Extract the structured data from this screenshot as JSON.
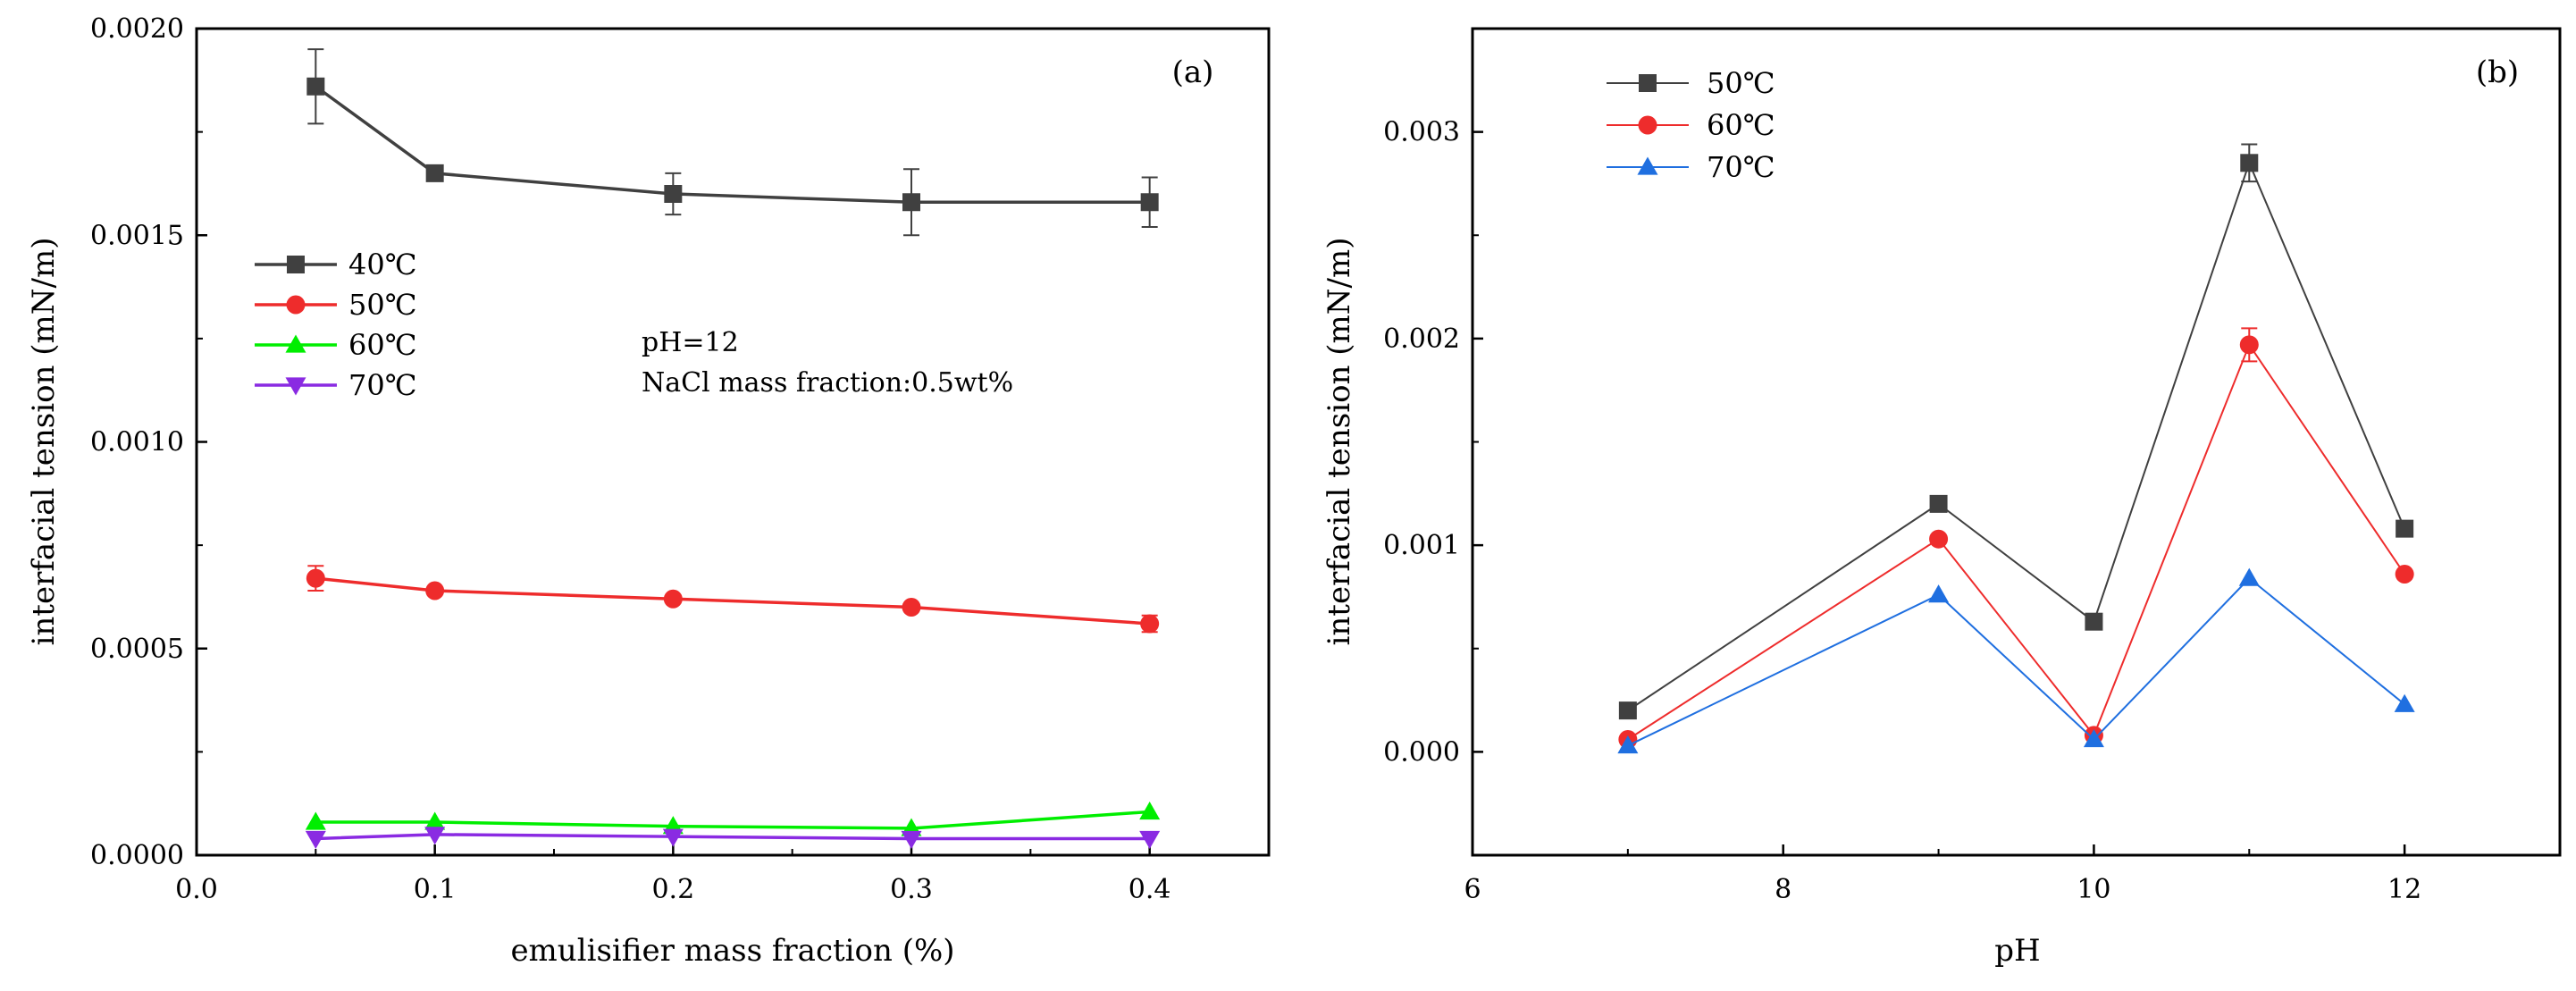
{
  "chart_data": [
    {
      "type": "line",
      "panel_label": "(a)",
      "xlabel": "emulisifier mass fraction (%)",
      "ylabel": "interfacial tension (mN/m)",
      "xlim": [
        0.0,
        0.45
      ],
      "ylim": [
        0.0,
        0.002
      ],
      "x_ticks": [
        "0.0",
        "0.1",
        "0.2",
        "0.3",
        "0.4"
      ],
      "y_ticks": [
        "0.0000",
        "0.0005",
        "0.0010",
        "0.0015",
        "0.0020"
      ],
      "x": [
        0.05,
        0.1,
        0.2,
        0.3,
        0.4
      ],
      "legend_position": "upper-left",
      "annotation": [
        "pH=12",
        "NaCl mass fraction:0.5wt%"
      ],
      "series": [
        {
          "name": "40℃",
          "color": "#404040",
          "marker": "square",
          "values": [
            0.00186,
            0.00165,
            0.0016,
            0.00158,
            0.00158
          ],
          "errors": [
            9e-05,
            0.0,
            5e-05,
            8e-05,
            6e-05
          ]
        },
        {
          "name": "50℃",
          "color": "#ee2c2c",
          "marker": "circle",
          "values": [
            0.00067,
            0.00064,
            0.00062,
            0.0006,
            0.00056
          ],
          "errors": [
            3e-05,
            0.0,
            0.0,
            0.0,
            2e-05
          ]
        },
        {
          "name": "60℃",
          "color": "#00ee00",
          "marker": "triangle-up",
          "values": [
            8e-05,
            8e-05,
            7e-05,
            6.5e-05,
            0.000105
          ],
          "errors": [
            0,
            0,
            0,
            0,
            0
          ]
        },
        {
          "name": "70℃",
          "color": "#8a2be2",
          "marker": "triangle-down",
          "values": [
            4e-05,
            5e-05,
            4.5e-05,
            4e-05,
            4e-05
          ],
          "errors": [
            0,
            0,
            0,
            0,
            0
          ]
        }
      ]
    },
    {
      "type": "line",
      "panel_label": "(b)",
      "xlabel": "pH",
      "ylabel": "interfacial tension (mN/m)",
      "xlim": [
        6,
        13
      ],
      "ylim": [
        -0.0005,
        0.0035
      ],
      "x_ticks": [
        "6",
        "8",
        "10",
        "12"
      ],
      "y_ticks": [
        "0.000",
        "0.001",
        "0.002",
        "0.003"
      ],
      "x": [
        7,
        9,
        10,
        11,
        12
      ],
      "legend_position": "upper-left",
      "series": [
        {
          "name": "50℃",
          "color": "#404040",
          "marker": "square",
          "values": [
            0.0002,
            0.0012,
            0.00063,
            0.00285,
            0.00108
          ],
          "errors": [
            0,
            0,
            0,
            9e-05,
            0
          ]
        },
        {
          "name": "60℃",
          "color": "#ee2c2c",
          "marker": "circle",
          "values": [
            6e-05,
            0.00103,
            8e-05,
            0.00197,
            0.00086
          ],
          "errors": [
            0,
            0,
            0,
            8e-05,
            0
          ]
        },
        {
          "name": "70℃",
          "color": "#1f6fe0",
          "marker": "triangle-up",
          "values": [
            3e-05,
            0.00076,
            6e-05,
            0.00084,
            0.00023
          ],
          "errors": [
            0,
            0,
            0,
            0,
            0
          ]
        }
      ]
    }
  ]
}
